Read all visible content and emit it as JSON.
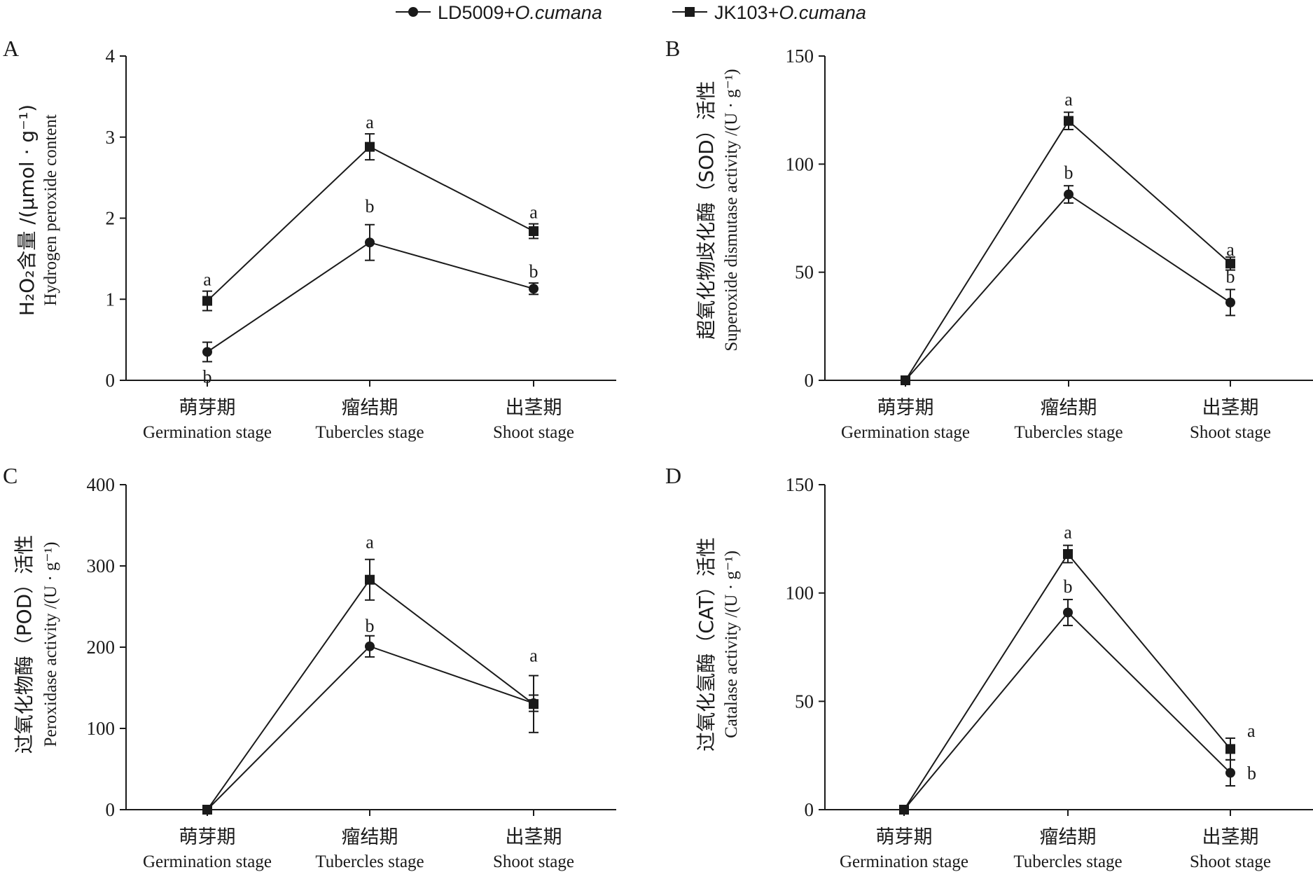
{
  "legend": [
    {
      "marker": "circle",
      "text": "LD5009+",
      "italic": "O.cumana"
    },
    {
      "marker": "square",
      "text": "JK103+",
      "italic": "O.cumana"
    }
  ],
  "categories_zh": [
    "萌芽期",
    "瘤结期",
    "出茎期"
  ],
  "categories_en": [
    "Germination stage",
    "Tubercles stage",
    "Shoot stage"
  ],
  "chart_data": [
    {
      "panel": "A",
      "type": "line",
      "ylabel_zh": "H₂O₂含量 /(μmol · g⁻¹)",
      "ylabel_en": "Hydrogen peroxide content",
      "ylim": [
        0,
        4
      ],
      "yticks": [
        0,
        1,
        2,
        3,
        4
      ],
      "categories": [
        "Germination stage",
        "Tubercles stage",
        "Shoot stage"
      ],
      "series": [
        {
          "name": "LD5009+O.cumana",
          "marker": "circle",
          "values": [
            0.35,
            1.7,
            1.13
          ],
          "errors": [
            0.12,
            0.22,
            0.07
          ],
          "letters": [
            "b",
            "b",
            "b"
          ]
        },
        {
          "name": "JK103+O.cumana",
          "marker": "square",
          "values": [
            0.98,
            2.88,
            1.84
          ],
          "errors": [
            0.12,
            0.16,
            0.09
          ],
          "letters": [
            "a",
            "a",
            "a"
          ]
        }
      ]
    },
    {
      "panel": "B",
      "type": "line",
      "ylabel_zh": "超氧化物歧化酶（SOD）活性",
      "ylabel_en": "Superoxide dismutase activity /(U · g⁻¹)",
      "ylim": [
        0,
        150
      ],
      "yticks": [
        0,
        50,
        100,
        150
      ],
      "categories": [
        "Germination stage",
        "Tubercles stage",
        "Shoot stage"
      ],
      "series": [
        {
          "name": "LD5009+O.cumana",
          "marker": "circle",
          "values": [
            0,
            86,
            36
          ],
          "errors": [
            0,
            4,
            6
          ],
          "letters": [
            "",
            "b",
            "b"
          ]
        },
        {
          "name": "JK103+O.cumana",
          "marker": "square",
          "values": [
            0,
            120,
            54
          ],
          "errors": [
            0,
            4,
            3
          ],
          "letters": [
            "",
            "a",
            "a"
          ]
        }
      ]
    },
    {
      "panel": "C",
      "type": "line",
      "ylabel_zh": "过氧化物酶（POD）活性",
      "ylabel_en": "Peroxidase activity /(U · g⁻¹)",
      "ylim": [
        0,
        400
      ],
      "yticks": [
        0,
        100,
        200,
        300,
        400
      ],
      "categories": [
        "Germination stage",
        "Tubercles stage",
        "Shoot stage"
      ],
      "series": [
        {
          "name": "LD5009+O.cumana",
          "marker": "circle",
          "values": [
            0,
            201,
            131
          ],
          "errors": [
            0,
            13,
            10
          ],
          "letters": [
            "",
            "b",
            ""
          ]
        },
        {
          "name": "JK103+O.cumana",
          "marker": "square",
          "values": [
            0,
            283,
            130
          ],
          "errors": [
            0,
            25,
            35
          ],
          "letters": [
            "",
            "a",
            "a"
          ]
        }
      ]
    },
    {
      "panel": "D",
      "type": "line",
      "ylabel_zh": "过氧化氢酶（CAT）活性",
      "ylabel_en": "Catalase activity /(U · g⁻¹)",
      "ylim": [
        0,
        150
      ],
      "yticks": [
        0,
        50,
        100,
        150
      ],
      "categories": [
        "Germination stage",
        "Tubercles stage",
        "Shoot stage"
      ],
      "series": [
        {
          "name": "LD5009+O.cumana",
          "marker": "circle",
          "values": [
            0,
            91,
            17
          ],
          "errors": [
            0,
            6,
            6
          ],
          "letters": [
            "",
            "b",
            "b"
          ]
        },
        {
          "name": "JK103+O.cumana",
          "marker": "square",
          "values": [
            0,
            118,
            28
          ],
          "errors": [
            0,
            4,
            5
          ],
          "letters": [
            "",
            "a",
            "a"
          ]
        }
      ]
    }
  ]
}
